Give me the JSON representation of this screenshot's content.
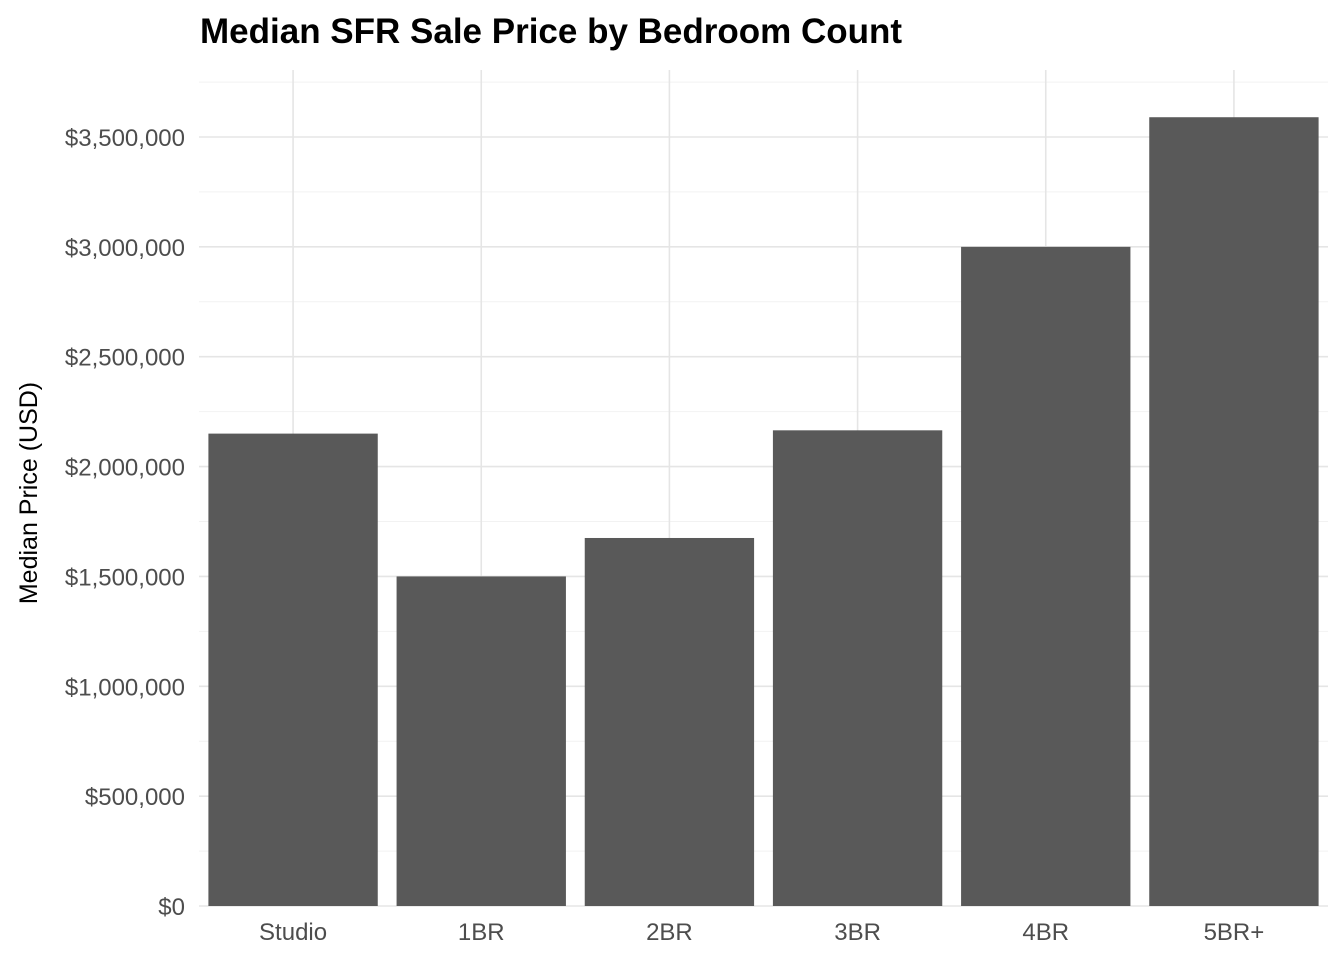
{
  "chart_data": {
    "type": "bar",
    "title": "Median SFR Sale Price by Bedroom Count",
    "xlabel": "",
    "ylabel": "Median Price (USD)",
    "categories": [
      "Studio",
      "1BR",
      "2BR",
      "3BR",
      "4BR",
      "5BR+"
    ],
    "values": [
      2150000,
      1500000,
      1675000,
      2165000,
      3000000,
      3590000
    ],
    "ylim": [
      0,
      3800000
    ],
    "yticks": [
      0,
      500000,
      1000000,
      1500000,
      2000000,
      2500000,
      3000000,
      3500000
    ],
    "ytick_labels": [
      "$0",
      "$500,000",
      "$1,000,000",
      "$1,500,000",
      "$2,000,000",
      "$2,500,000",
      "$3,000,000",
      "$3,500,000"
    ],
    "grid": true,
    "legend": "none",
    "bar_color": "#595959"
  }
}
